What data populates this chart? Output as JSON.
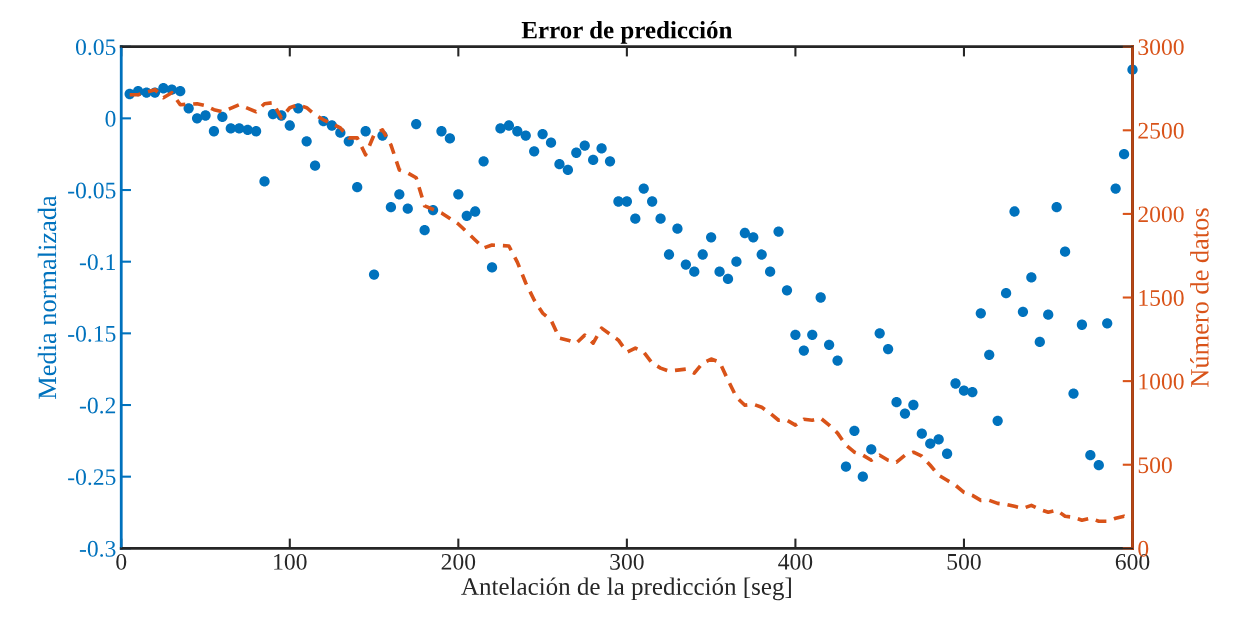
{
  "chart_data": {
    "type": "scatter",
    "title": "Error de predicción",
    "xlabel": "Antelación de la predicción [seg]",
    "ylabel": "Media normalizada",
    "y2label": "Número de datos",
    "xlim": [
      0,
      600
    ],
    "xticks": [
      0,
      100,
      200,
      300,
      400,
      500,
      600
    ],
    "ylim": [
      -0.3,
      0.05
    ],
    "yticks": [
      -0.3,
      -0.25,
      -0.2,
      -0.15,
      -0.1,
      -0.05,
      0,
      0.05
    ],
    "y2lim": [
      0,
      3000
    ],
    "y2ticks": [
      0,
      500,
      1000,
      1500,
      2000,
      2500,
      3000
    ],
    "grid": false,
    "series": [
      {
        "color": "#0072bd",
        "marker": "circle",
        "x": [
          5,
          10,
          15,
          20,
          25,
          30,
          35,
          40,
          45,
          50,
          55,
          60,
          65,
          70,
          75,
          80,
          85,
          90,
          95,
          100,
          105,
          110,
          115,
          120,
          125,
          130,
          135,
          140,
          145,
          150,
          155,
          160,
          165,
          170,
          175,
          180,
          185,
          190,
          195,
          200,
          205,
          210,
          215,
          220,
          225,
          230,
          235,
          240,
          245,
          250,
          255,
          260,
          265,
          270,
          275,
          280,
          285,
          290,
          295,
          300,
          305,
          310,
          315,
          320,
          325,
          330,
          335,
          340,
          345,
          350,
          355,
          360,
          365,
          370,
          375,
          380,
          385,
          390,
          395,
          400,
          405,
          410,
          415,
          420,
          425,
          430,
          435,
          440,
          445,
          450,
          455,
          460,
          465,
          470,
          475,
          480,
          485,
          490,
          495,
          500,
          505,
          510,
          515,
          520,
          525,
          530,
          535,
          540,
          545,
          550,
          555,
          560,
          565,
          570,
          575,
          580,
          585,
          590,
          595,
          600
        ],
        "values": [
          0.017,
          0.019,
          0.018,
          0.018,
          0.021,
          0.02,
          0.019,
          0.007,
          0.0,
          0.002,
          -0.009,
          0.001,
          -0.007,
          -0.007,
          -0.008,
          -0.009,
          -0.044,
          0.003,
          0.002,
          -0.005,
          0.007,
          -0.016,
          -0.033,
          -0.002,
          -0.005,
          -0.01,
          -0.016,
          -0.048,
          -0.009,
          -0.109,
          -0.012,
          -0.062,
          -0.053,
          -0.063,
          -0.004,
          -0.078,
          -0.064,
          -0.009,
          -0.014,
          -0.053,
          -0.068,
          -0.065,
          -0.03,
          -0.104,
          -0.007,
          -0.005,
          -0.009,
          -0.012,
          -0.023,
          -0.011,
          -0.017,
          -0.032,
          -0.036,
          -0.024,
          -0.019,
          -0.029,
          -0.021,
          -0.03,
          -0.058,
          -0.058,
          -0.07,
          -0.049,
          -0.058,
          -0.07,
          -0.095,
          -0.077,
          -0.102,
          -0.107,
          -0.095,
          -0.083,
          -0.107,
          -0.112,
          -0.1,
          -0.08,
          -0.083,
          -0.095,
          -0.107,
          -0.079,
          -0.12,
          -0.151,
          -0.162,
          -0.151,
          -0.125,
          -0.158,
          -0.169,
          -0.243,
          -0.218,
          -0.25,
          -0.231,
          -0.15,
          -0.161,
          -0.198,
          -0.206,
          -0.2,
          -0.22,
          -0.227,
          -0.224,
          -0.234,
          -0.185,
          -0.19,
          -0.191,
          -0.136,
          -0.165,
          -0.211,
          -0.122,
          -0.065,
          -0.135,
          -0.111,
          -0.156,
          -0.137,
          -0.062,
          -0.093,
          -0.192,
          -0.144,
          -0.235,
          -0.242,
          -0.143,
          -0.049,
          -0.025,
          0.034
        ]
      },
      {
        "type": "line",
        "axis": "y2",
        "color": "#d95319",
        "line_style": "dashed",
        "marker": "none",
        "x": [
          5,
          10,
          20,
          25,
          30,
          35,
          45,
          50,
          55,
          60,
          70,
          80,
          85,
          90,
          95,
          100,
          105,
          110,
          115,
          120,
          130,
          135,
          140,
          145,
          150,
          155,
          160,
          165,
          170,
          175,
          180,
          190,
          200,
          205,
          210,
          215,
          220,
          230,
          235,
          240,
          245,
          250,
          255,
          260,
          265,
          270,
          275,
          280,
          285,
          290,
          295,
          300,
          305,
          310,
          315,
          320,
          325,
          330,
          335,
          340,
          345,
          350,
          355,
          360,
          365,
          370,
          375,
          380,
          385,
          390,
          395,
          400,
          405,
          410,
          415,
          420,
          425,
          430,
          435,
          440,
          445,
          450,
          455,
          460,
          465,
          470,
          475,
          480,
          485,
          490,
          495,
          500,
          505,
          510,
          515,
          520,
          525,
          530,
          535,
          540,
          545,
          550,
          555,
          560,
          565,
          570,
          575,
          580,
          585,
          590,
          595,
          600
        ],
        "values": [
          2713,
          2713,
          2743,
          2695,
          2725,
          2653,
          2659,
          2647,
          2623,
          2611,
          2653,
          2611,
          2659,
          2665,
          2575,
          2635,
          2653,
          2635,
          2593,
          2563,
          2515,
          2455,
          2455,
          2353,
          2473,
          2503,
          2413,
          2263,
          2245,
          2216,
          2048,
          2006,
          1940,
          1892,
          1844,
          1796,
          1814,
          1808,
          1712,
          1587,
          1485,
          1407,
          1365,
          1257,
          1245,
          1227,
          1275,
          1227,
          1317,
          1281,
          1245,
          1173,
          1197,
          1173,
          1108,
          1078,
          1060,
          1066,
          1072,
          1048,
          1108,
          1132,
          1114,
          1006,
          904,
          856,
          862,
          844,
          808,
          766,
          766,
          737,
          772,
          766,
          778,
          737,
          689,
          617,
          575,
          557,
          527,
          557,
          527,
          515,
          557,
          575,
          551,
          497,
          437,
          407,
          377,
          335,
          317,
          287,
          287,
          269,
          263,
          251,
          239,
          257,
          233,
          216,
          228,
          192,
          186,
          168,
          180,
          162,
          162,
          180,
          192,
          168
        ]
      }
    ]
  }
}
